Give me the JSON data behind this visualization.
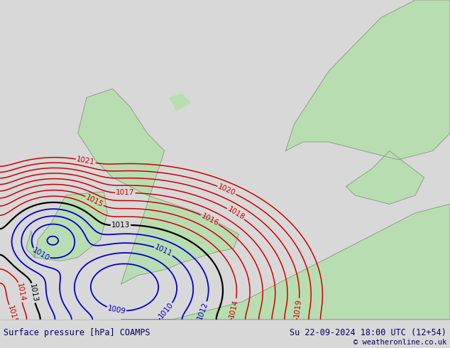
{
  "title_left": "Surface pressure [hPa] COAMPS",
  "title_right": "Su 22-09-2024 18:00 UTC (12+54)",
  "copyright": "© weatheronline.co.uk",
  "bg_color": "#d8d8d8",
  "land_color": "#b8ddb0",
  "sea_color": "#d0d0d0",
  "border_color": "#888888",
  "contour_color_low": "#0000cc",
  "contour_color_mid": "#000000",
  "contour_color_high": "#cc0000",
  "label_fontsize": 7.5,
  "bottom_bar_color": "#ffffff",
  "lw_low": 1.3,
  "lw_mid": 1.6,
  "lw_high": 1.1
}
